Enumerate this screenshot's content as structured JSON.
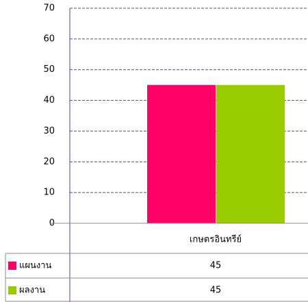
{
  "chart_data": {
    "type": "bar",
    "categories": [
      "เกษตรอินทรีย์"
    ],
    "series": [
      {
        "name": "แผนงาน",
        "color": "#ff0066",
        "values": [
          45
        ]
      },
      {
        "name": "ผลงาน",
        "color": "#99cc00",
        "values": [
          45
        ]
      }
    ],
    "ylim": [
      0,
      70
    ],
    "yticks": [
      0,
      10,
      20,
      30,
      40,
      50,
      60,
      70
    ],
    "grid": true
  }
}
